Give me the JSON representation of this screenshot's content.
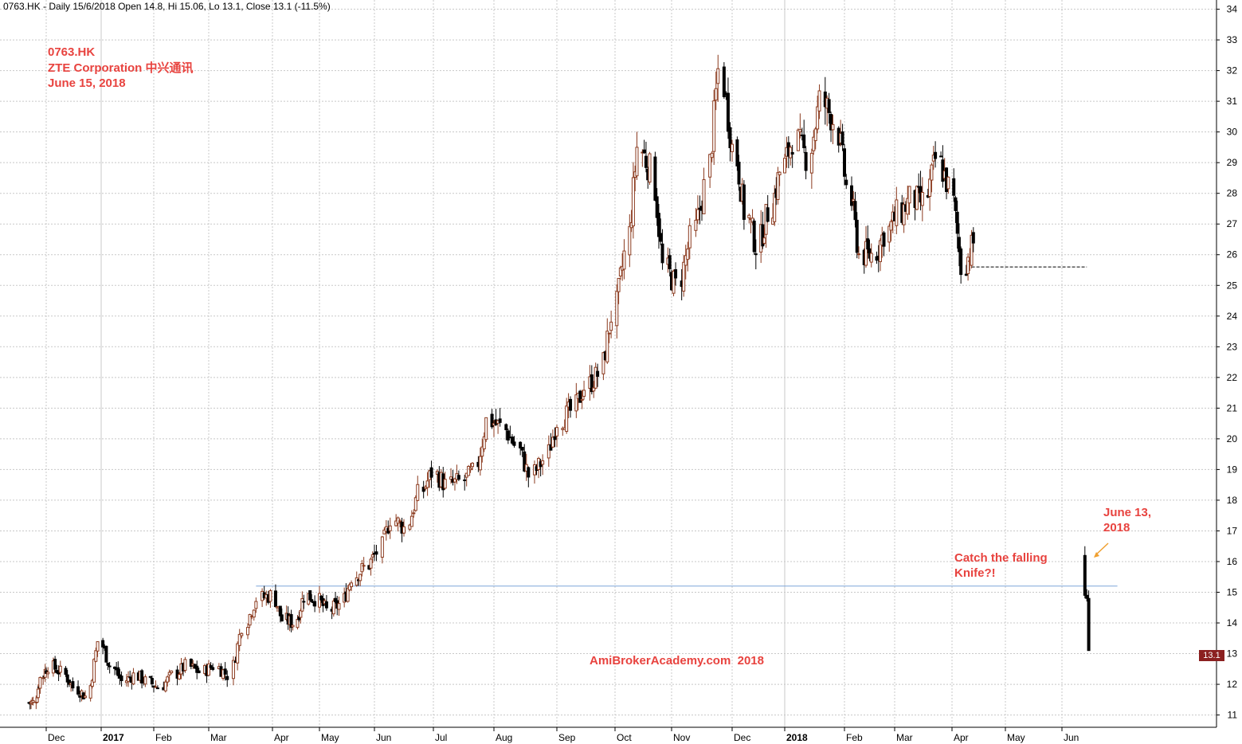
{
  "header": {
    "text": "0763.HK - Daily 15/6/2018 Open 14.8, Hi 15.06, Lo 13.1, Close 13.1 (-11.5%)"
  },
  "title_block": {
    "ticker": "0763.HK",
    "company": "ZTE Corporation 中兴通讯",
    "date": "June 15, 2018"
  },
  "annotations": {
    "june13_line1": "June 13,",
    "june13_line2": "2018",
    "knife_line1": "Catch the falling",
    "knife_line2": "Knife?!",
    "watermark": "AmiBrokerAcademy.com  2018"
  },
  "last_price_label": "13.1",
  "colors": {
    "up_candle": "#8b3a1e",
    "down_candle": "#000000",
    "grid": "#c8c8c8",
    "support_line": "#7fa6d9",
    "annotation_text": "#e8433f",
    "arrow": "#f0a030",
    "last_price_badge": "#8b2020"
  },
  "chart_data": {
    "type": "candlestick",
    "y_axis": {
      "ylim": [
        10.6,
        34.3
      ],
      "ticks": [
        11,
        12,
        13,
        14,
        15,
        16,
        17,
        18,
        19,
        20,
        21,
        22,
        23,
        24,
        25,
        26,
        27,
        28,
        29,
        30,
        31,
        32,
        33,
        34
      ],
      "position": "right"
    },
    "x_axis": {
      "tick_labels": [
        "Dec",
        "2017",
        "Feb",
        "Mar",
        "Apr",
        "May",
        "Jun",
        "Jul",
        "Aug",
        "Sep",
        "Oct",
        "Nov",
        "Dec",
        "2018",
        "Feb",
        "Mar",
        "Apr",
        "May",
        "Jun"
      ],
      "bold_labels": [
        "2017",
        "2018"
      ]
    },
    "grid": true,
    "reference_lines": [
      {
        "type": "horizontal",
        "value": 15.2,
        "from": "2017-03-24",
        "to": "2018-06-30",
        "style": "solid"
      },
      {
        "type": "horizontal",
        "value": 25.6,
        "from": "2018-04-12",
        "to": "2018-06-14",
        "style": "dashed"
      }
    ],
    "series": [
      {
        "date": "2016-11-14",
        "close": 11.4
      },
      {
        "date": "2016-11-21",
        "close": 12.2
      },
      {
        "date": "2016-11-28",
        "close": 12.6
      },
      {
        "date": "2016-12-05",
        "close": 12.4
      },
      {
        "date": "2016-12-12",
        "close": 11.9
      },
      {
        "date": "2016-12-19",
        "close": 11.6
      },
      {
        "date": "2016-12-26",
        "close": 13.4
      },
      {
        "date": "2017-01-02",
        "close": 12.6
      },
      {
        "date": "2017-01-09",
        "close": 12.1
      },
      {
        "date": "2017-01-16",
        "close": 12.3
      },
      {
        "date": "2017-01-23",
        "close": 12.1
      },
      {
        "date": "2017-01-30",
        "close": 11.9
      },
      {
        "date": "2017-02-06",
        "close": 12.3
      },
      {
        "date": "2017-02-13",
        "close": 12.6
      },
      {
        "date": "2017-02-20",
        "close": 12.4
      },
      {
        "date": "2017-02-27",
        "close": 12.6
      },
      {
        "date": "2017-03-06",
        "close": 12.3
      },
      {
        "date": "2017-03-13",
        "close": 13.9
      },
      {
        "date": "2017-03-20",
        "close": 14.8
      },
      {
        "date": "2017-03-27",
        "close": 14.9
      },
      {
        "date": "2017-04-03",
        "close": 14.1
      },
      {
        "date": "2017-04-10",
        "close": 14.0
      },
      {
        "date": "2017-04-17",
        "close": 14.9
      },
      {
        "date": "2017-04-24",
        "close": 14.8
      },
      {
        "date": "2017-05-01",
        "close": 14.4
      },
      {
        "date": "2017-05-08",
        "close": 14.6
      },
      {
        "date": "2017-05-15",
        "close": 15.5
      },
      {
        "date": "2017-05-22",
        "close": 15.8
      },
      {
        "date": "2017-05-29",
        "close": 16.3
      },
      {
        "date": "2017-06-05",
        "close": 17.4
      },
      {
        "date": "2017-06-12",
        "close": 17.1
      },
      {
        "date": "2017-06-19",
        "close": 18.2
      },
      {
        "date": "2017-06-26",
        "close": 18.9
      },
      {
        "date": "2017-07-03",
        "close": 18.5
      },
      {
        "date": "2017-07-10",
        "close": 18.6
      },
      {
        "date": "2017-07-17",
        "close": 18.9
      },
      {
        "date": "2017-07-24",
        "close": 20.6
      },
      {
        "date": "2017-07-31",
        "close": 20.4
      },
      {
        "date": "2017-08-07",
        "close": 19.8
      },
      {
        "date": "2017-08-14",
        "close": 18.8
      },
      {
        "date": "2017-08-21",
        "close": 19.3
      },
      {
        "date": "2017-08-28",
        "close": 20.6
      },
      {
        "date": "2017-09-04",
        "close": 20.9
      },
      {
        "date": "2017-09-11",
        "close": 21.7
      },
      {
        "date": "2017-09-18",
        "close": 22.1
      },
      {
        "date": "2017-09-25",
        "close": 24.0
      },
      {
        "date": "2017-10-02",
        "close": 26.0
      },
      {
        "date": "2017-10-09",
        "close": 29.5
      },
      {
        "date": "2017-10-16",
        "close": 28.8
      },
      {
        "date": "2017-10-23",
        "close": 25.6
      },
      {
        "date": "2017-10-30",
        "close": 25.0
      },
      {
        "date": "2017-11-06",
        "close": 26.5
      },
      {
        "date": "2017-11-13",
        "close": 28.2
      },
      {
        "date": "2017-11-20",
        "close": 32.0
      },
      {
        "date": "2017-11-27",
        "close": 29.5
      },
      {
        "date": "2017-12-04",
        "close": 27.4
      },
      {
        "date": "2017-12-11",
        "close": 26.3
      },
      {
        "date": "2017-12-18",
        "close": 27.4
      },
      {
        "date": "2017-12-25",
        "close": 28.7
      },
      {
        "date": "2018-01-01",
        "close": 29.8
      },
      {
        "date": "2018-01-08",
        "close": 29.2
      },
      {
        "date": "2018-01-15",
        "close": 31.0
      },
      {
        "date": "2018-01-22",
        "close": 30.4
      },
      {
        "date": "2018-01-29",
        "close": 28.2
      },
      {
        "date": "2018-02-05",
        "close": 26.0
      },
      {
        "date": "2018-02-12",
        "close": 26.0
      },
      {
        "date": "2018-02-19",
        "close": 26.7
      },
      {
        "date": "2018-02-26",
        "close": 27.3
      },
      {
        "date": "2018-03-05",
        "close": 27.8
      },
      {
        "date": "2018-03-12",
        "close": 27.7
      },
      {
        "date": "2018-03-19",
        "close": 29.1
      },
      {
        "date": "2018-03-26",
        "close": 28.2
      },
      {
        "date": "2018-04-02",
        "close": 25.6
      },
      {
        "date": "2018-04-09",
        "close": 26.4
      },
      {
        "date": "2018-06-13",
        "open": 16.2,
        "high": 16.5,
        "low": 14.8,
        "close": 14.9
      },
      {
        "date": "2018-06-14",
        "open": 14.9,
        "high": 15.1,
        "low": 14.7,
        "close": 14.8
      },
      {
        "date": "2018-06-15",
        "open": 14.8,
        "high": 15.06,
        "low": 13.1,
        "close": 13.1
      }
    ]
  }
}
